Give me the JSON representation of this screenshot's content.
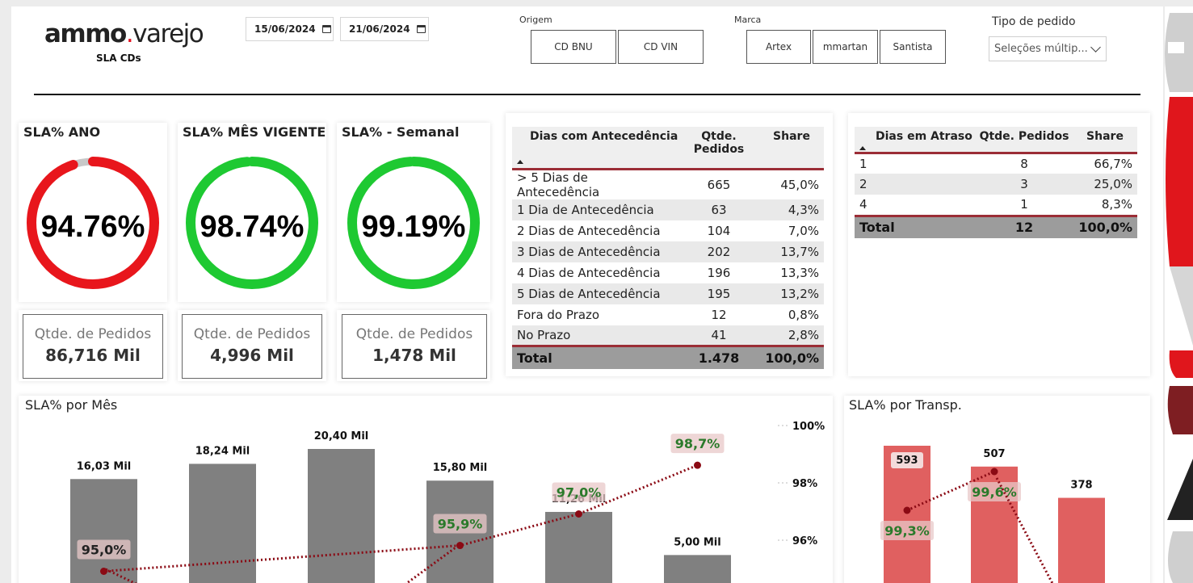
{
  "header": {
    "logo_left": "ammo",
    "logo_dot": ".",
    "logo_right": "varejo",
    "subtitle": "SLA CDs",
    "date_start": "15/06/2024",
    "date_end": "21/06/2024",
    "origem": {
      "title": "Origem",
      "options": [
        "CD BNU",
        "CD VIN"
      ]
    },
    "marca": {
      "title": "Marca",
      "options": [
        "Artex",
        "mmartan",
        "Santista"
      ]
    },
    "tipo_pedido": {
      "title": "Tipo de pedido",
      "value": "Seleções múltip..."
    }
  },
  "colors": {
    "red": "#e8161c",
    "green": "#1ec932",
    "track": "#c8c8c8",
    "bar_gray": "#808080",
    "bar_red": "#e06060",
    "line": "#8b0a14",
    "accent_dark_red": "#9b2d36"
  },
  "kpis": [
    {
      "title": "SLA% ANO",
      "value": "94.76%",
      "pct": 94.76,
      "color": "red",
      "count_label": "Qtde. de Pedidos",
      "count_value": "86,716 Mil"
    },
    {
      "title": "SLA% MÊS VIGENTE",
      "value": "98.74%",
      "pct": 98.74,
      "color": "green",
      "count_label": "Qtde. de Pedidos",
      "count_value": "4,996 Mil"
    },
    {
      "title": "SLA% - Semanal",
      "value": "99.19%",
      "pct": 99.19,
      "color": "green",
      "count_label": "Qtde. de Pedidos",
      "count_value": "1,478 Mil"
    }
  ],
  "antecedencia": {
    "headers": [
      "Dias com Antecedência",
      "Qtde. Pedidos",
      "Share"
    ],
    "rows": [
      [
        "> 5 Dias de Antecedência",
        "665",
        "45,0%"
      ],
      [
        "1 Dia de Antecedência",
        "63",
        "4,3%"
      ],
      [
        "2 Dias de Antecedência",
        "104",
        "7,0%"
      ],
      [
        "3 Dias de Antecedência",
        "202",
        "13,7%"
      ],
      [
        "4 Dias de Antecedência",
        "196",
        "13,3%"
      ],
      [
        "5 Dias de Antecedência",
        "195",
        "13,2%"
      ],
      [
        "Fora do Prazo",
        "12",
        "0,8%"
      ],
      [
        "No Prazo",
        "41",
        "2,8%"
      ]
    ],
    "total": [
      "Total",
      "1.478",
      "100,0%"
    ]
  },
  "atraso": {
    "headers": [
      "Dias em Atraso",
      "Qtde. Pedidos",
      "Share"
    ],
    "rows": [
      [
        "1",
        "8",
        "66,7%"
      ],
      [
        "2",
        "3",
        "25,0%"
      ],
      [
        "4",
        "1",
        "8,3%"
      ]
    ],
    "total": [
      "Total",
      "12",
      "100,0%"
    ]
  },
  "chart_data": [
    {
      "type": "bar",
      "title": "SLA% por Mês",
      "categories": [
        "",
        "",
        "",
        "",
        "",
        ""
      ],
      "series": [
        {
          "values": [
            16.03,
            18.24,
            20.4,
            15.8,
            11.26,
            5.0
          ],
          "labels": [
            "16,03 Mil",
            "18,24 Mil",
            "20,40 Mil",
            "15,80 Mil",
            "11,26 Mil",
            "5,00 Mil"
          ]
        },
        {
          "type": "line",
          "values": [
            95.0,
            null,
            null,
            95.9,
            97.0,
            98.7
          ],
          "labels": [
            "95,0%",
            "",
            "",
            "95,9%",
            "97,0%",
            "98,7%"
          ]
        }
      ],
      "y2_ticks": [
        "100%",
        "98%",
        "96%"
      ],
      "y2lim": [
        94,
        100
      ]
    },
    {
      "type": "bar",
      "title": "SLA% por Transp.",
      "categories": [
        "",
        "",
        ""
      ],
      "series": [
        {
          "values": [
            593,
            507,
            378
          ],
          "labels": [
            "593",
            "507",
            "378"
          ]
        },
        {
          "type": "line",
          "values": [
            99.3,
            99.6,
            null
          ],
          "labels": [
            "99,3%",
            "99,6%",
            ""
          ]
        }
      ]
    }
  ]
}
